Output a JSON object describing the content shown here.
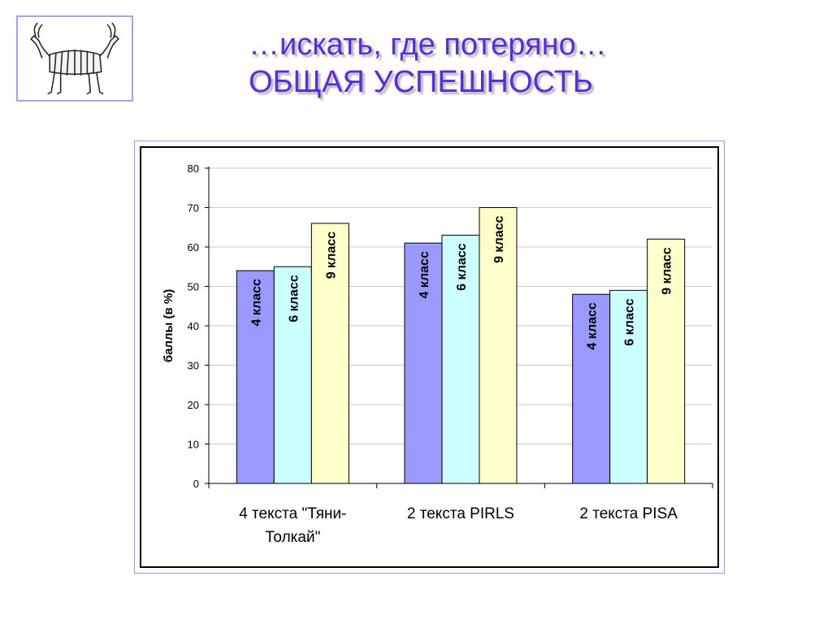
{
  "title_line1": "…искать, где потеряно…",
  "title_line2": "ОБЩАЯ УСПЕШНОСТЬ",
  "logo_icon": "goat-zebra-icon",
  "chart_data": {
    "type": "bar",
    "categories": [
      [
        "4 текста \"Тяни-",
        "Толкай\""
      ],
      [
        "2 текста PIRLS"
      ],
      [
        "2 текста PISA"
      ]
    ],
    "series": [
      {
        "name": "4 класс",
        "values": [
          54,
          61,
          48
        ],
        "color": "#9999ff"
      },
      {
        "name": "6 класс",
        "values": [
          55,
          63,
          49
        ],
        "color": "#ccffff"
      },
      {
        "name": "9 класс",
        "values": [
          66,
          70,
          62
        ],
        "color": "#ffffcc"
      }
    ],
    "ylabel": "баллы (в %)",
    "ylim": [
      0,
      80
    ],
    "yticks": [
      0,
      10,
      20,
      30,
      40,
      50,
      60,
      70,
      80
    ],
    "grid": true,
    "legend": "none"
  }
}
